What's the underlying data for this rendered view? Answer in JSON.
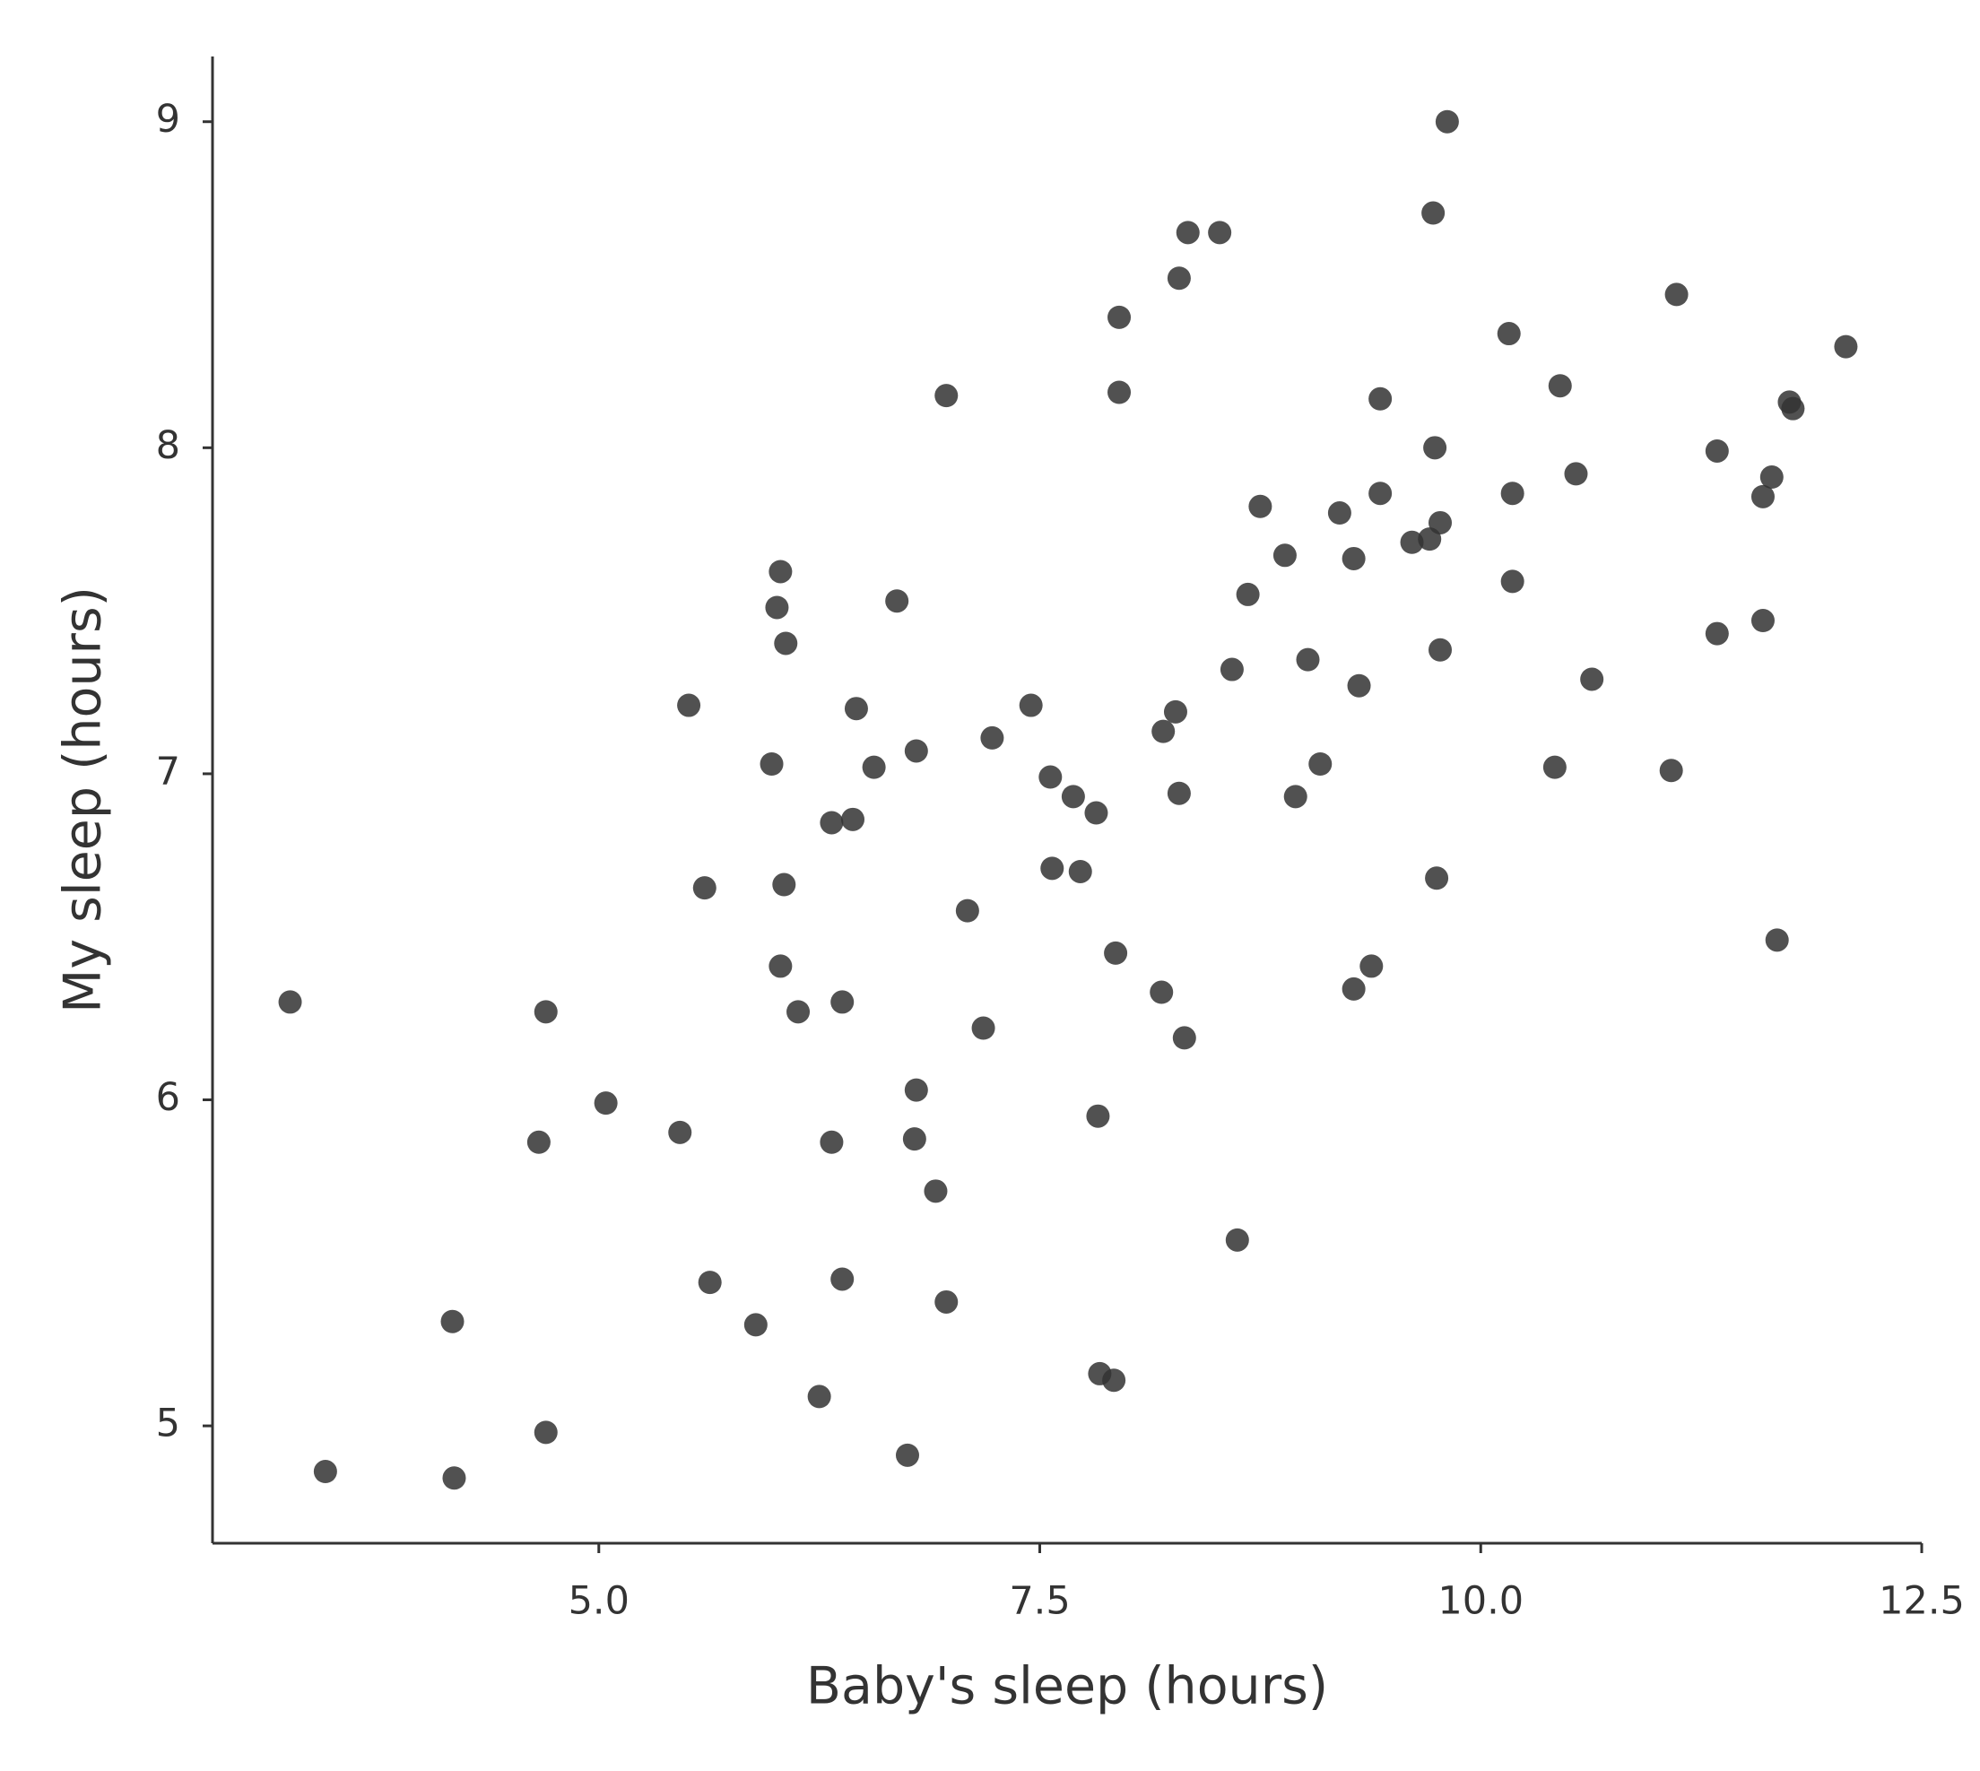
{
  "chart_data": {
    "type": "scatter",
    "xlabel": "Baby's sleep (hours)",
    "ylabel": "My sleep (hours)",
    "color": "#333333",
    "xlim": [
      2.81,
      12.5
    ],
    "ylim": [
      4.64,
      9.2
    ],
    "xticks": [
      {
        "value": 5,
        "label": "5.0"
      },
      7.5,
      {
        "value": 10,
        "label": "10.0"
      },
      12.5
    ],
    "yticks": [
      5,
      6,
      7,
      8,
      9
    ],
    "grid": false,
    "x": [
      3.25,
      3.45,
      4.17,
      4.18,
      4.7,
      4.66,
      4.7,
      5.04,
      5.51,
      5.46,
      5.6,
      5.63,
      5.89,
      5.98,
      6.03,
      6.01,
      6.06,
      6.05,
      6.03,
      6.13,
      6.25,
      6.32,
      6.44,
      6.32,
      6.38,
      6.38,
      6.46,
      6.56,
      6.69,
      6.75,
      6.8,
      6.8,
      6.79,
      6.91,
      6.97,
      6.97,
      7.09,
      7.18,
      7.23,
      7.45,
      7.56,
      7.57,
      7.69,
      7.73,
      7.82,
      7.83,
      7.84,
      7.92,
      7.93,
      7.95,
      7.95,
      8.2,
      8.27,
      8.19,
      8.29,
      8.29,
      8.32,
      8.34,
      8.52,
      8.59,
      8.62,
      8.68,
      8.75,
      8.89,
      8.95,
      9.02,
      9.09,
      9.2,
      9.28,
      9.28,
      9.31,
      9.38,
      9.43,
      9.43,
      9.61,
      9.71,
      9.73,
      9.74,
      9.77,
      9.77,
      9.75,
      9.81,
      10.16,
      10.18,
      10.18,
      10.42,
      10.45,
      10.54,
      10.63,
      11.08,
      11.11,
      11.34,
      11.34,
      11.6,
      11.6,
      11.65,
      11.68,
      11.75,
      11.77,
      12.07
    ],
    "values": [
      6.3,
      4.86,
      5.32,
      4.84,
      6.27,
      5.87,
      4.98,
      5.99,
      7.21,
      5.9,
      6.65,
      5.44,
      5.31,
      7.03,
      7.62,
      7.51,
      7.4,
      6.66,
      6.41,
      6.27,
      5.09,
      6.85,
      6.86,
      5.87,
      6.3,
      5.45,
      7.2,
      7.02,
      7.53,
      4.91,
      7.07,
      6.03,
      5.88,
      5.72,
      8.16,
      5.38,
      6.58,
      6.22,
      7.11,
      7.21,
      6.99,
      6.71,
      6.93,
      6.7,
      6.88,
      5.95,
      5.16,
      5.14,
      6.45,
      8.4,
      8.17,
      7.13,
      7.19,
      6.33,
      8.52,
      6.94,
      6.19,
      8.66,
      8.66,
      7.32,
      5.57,
      7.55,
      7.82,
      7.67,
      6.93,
      7.35,
      7.03,
      7.8,
      7.66,
      6.34,
      7.27,
      6.41,
      8.15,
      7.86,
      7.71,
      7.72,
      8.72,
      8.0,
      7.77,
      7.38,
      6.68,
      9.0,
      8.35,
      7.86,
      7.59,
      7.02,
      8.19,
      7.92,
      7.29,
      7.01,
      8.47,
      7.99,
      7.43,
      7.47,
      7.85,
      7.91,
      6.49,
      8.14,
      8.12,
      8.31
    ]
  }
}
